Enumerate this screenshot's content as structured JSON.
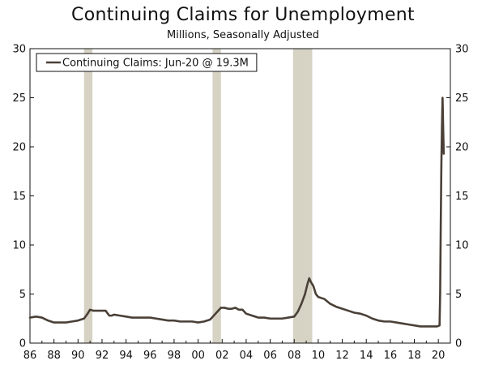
{
  "chart_data": {
    "type": "line",
    "title": "Continuing Claims for Unemployment",
    "subtitle": "Millions, Seasonally Adjusted",
    "xlabel": "",
    "ylabel": "",
    "xlim": [
      1986,
      2021
    ],
    "ylim": [
      0,
      30
    ],
    "y_ticks": [
      0,
      5,
      10,
      15,
      20,
      25,
      30
    ],
    "y_axes": "left and right, same scale",
    "x_ticks": [
      {
        "year": 1986,
        "label": "86"
      },
      {
        "year": 1988,
        "label": "88"
      },
      {
        "year": 1990,
        "label": "90"
      },
      {
        "year": 1992,
        "label": "92"
      },
      {
        "year": 1994,
        "label": "94"
      },
      {
        "year": 1996,
        "label": "96"
      },
      {
        "year": 1998,
        "label": "98"
      },
      {
        "year": 2000,
        "label": "00"
      },
      {
        "year": 2002,
        "label": "02"
      },
      {
        "year": 2004,
        "label": "04"
      },
      {
        "year": 2006,
        "label": "06"
      },
      {
        "year": 2008,
        "label": "08"
      },
      {
        "year": 2010,
        "label": "10"
      },
      {
        "year": 2012,
        "label": "12"
      },
      {
        "year": 2014,
        "label": "14"
      },
      {
        "year": 2016,
        "label": "16"
      },
      {
        "year": 2018,
        "label": "18"
      },
      {
        "year": 2020,
        "label": "20"
      }
    ],
    "grid": false,
    "legend_placement": "top-left",
    "recession_bands": [
      {
        "start": 1990.5,
        "end": 1991.2
      },
      {
        "start": 2001.2,
        "end": 2001.9
      },
      {
        "start": 2007.9,
        "end": 2009.5
      }
    ],
    "series": [
      {
        "name": "Continuing Claims: Jun-20 @ 19.3M",
        "color": "#4a4037",
        "x": [
          1986.0,
          1986.5,
          1987.0,
          1987.5,
          1988.0,
          1988.5,
          1989.0,
          1989.5,
          1990.0,
          1990.5,
          1990.8,
          1991.0,
          1991.3,
          1991.6,
          1992.0,
          1992.3,
          1992.6,
          1992.8,
          1993.0,
          1993.5,
          1994.0,
          1994.5,
          1995.0,
          1995.5,
          1996.0,
          1996.5,
          1997.0,
          1997.5,
          1998.0,
          1998.5,
          1999.0,
          1999.5,
          2000.0,
          2000.5,
          2001.0,
          2001.3,
          2001.6,
          2001.9,
          2002.2,
          2002.5,
          2002.8,
          2003.1,
          2003.4,
          2003.7,
          2004.0,
          2004.5,
          2005.0,
          2005.5,
          2006.0,
          2006.5,
          2007.0,
          2007.5,
          2008.0,
          2008.3,
          2008.6,
          2008.9,
          2009.1,
          2009.25,
          2009.4,
          2009.6,
          2009.8,
          2010.0,
          2010.5,
          2011.0,
          2011.5,
          2012.0,
          2012.5,
          2013.0,
          2013.5,
          2014.0,
          2014.5,
          2015.0,
          2015.5,
          2016.0,
          2016.5,
          2017.0,
          2017.5,
          2018.0,
          2018.5,
          2019.0,
          2019.5,
          2019.9,
          2020.1,
          2020.15,
          2020.2,
          2020.25,
          2020.3,
          2020.35,
          2020.4,
          2020.45
        ],
        "values": [
          2.6,
          2.7,
          2.6,
          2.3,
          2.1,
          2.1,
          2.1,
          2.2,
          2.3,
          2.5,
          3.0,
          3.4,
          3.3,
          3.3,
          3.3,
          3.3,
          2.8,
          2.8,
          2.9,
          2.8,
          2.7,
          2.6,
          2.6,
          2.6,
          2.6,
          2.5,
          2.4,
          2.3,
          2.3,
          2.2,
          2.2,
          2.2,
          2.1,
          2.2,
          2.4,
          2.8,
          3.2,
          3.6,
          3.6,
          3.5,
          3.5,
          3.6,
          3.4,
          3.4,
          3.0,
          2.8,
          2.6,
          2.6,
          2.5,
          2.5,
          2.5,
          2.6,
          2.7,
          3.2,
          4.0,
          5.0,
          6.0,
          6.6,
          6.2,
          5.8,
          5.0,
          4.7,
          4.5,
          4.0,
          3.7,
          3.5,
          3.3,
          3.1,
          3.0,
          2.8,
          2.5,
          2.3,
          2.2,
          2.2,
          2.1,
          2.0,
          1.9,
          1.8,
          1.7,
          1.7,
          1.7,
          1.7,
          1.8,
          5.0,
          12.0,
          18.0,
          22.0,
          25.0,
          22.0,
          19.3
        ]
      }
    ]
  }
}
